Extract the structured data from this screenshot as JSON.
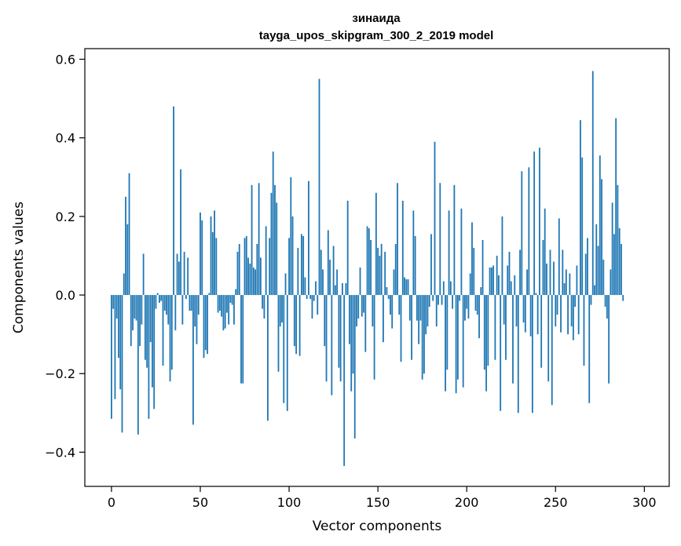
{
  "chart_data": {
    "type": "bar",
    "title": "зинаида",
    "subtitle": "tayga_upos_skipgram_300_2_2019 model",
    "xlabel": "Vector components",
    "ylabel": "Components values",
    "xlim": [
      -15,
      314
    ],
    "ylim": [
      -0.487,
      0.627
    ],
    "xticks": [
      0,
      50,
      100,
      150,
      200,
      250,
      300
    ],
    "yticks": [
      -0.4,
      -0.2,
      0.0,
      0.2,
      0.4,
      0.6
    ],
    "ytick_labels": [
      "−0.4",
      "−0.2",
      "0.0",
      "0.2",
      "0.4",
      "0.6"
    ],
    "grid": false,
    "bar_color": "#1f77b4",
    "values": [
      -0.315,
      -0.035,
      -0.265,
      -0.06,
      -0.16,
      -0.24,
      -0.35,
      0.055,
      0.25,
      0.18,
      0.31,
      -0.13,
      -0.09,
      -0.06,
      -0.065,
      -0.355,
      -0.13,
      -0.075,
      0.105,
      -0.165,
      -0.185,
      -0.315,
      -0.12,
      -0.235,
      -0.29,
      -0.035,
      0.005,
      -0.02,
      -0.015,
      -0.18,
      -0.04,
      -0.05,
      -0.075,
      -0.22,
      -0.19,
      0.48,
      -0.09,
      0.105,
      0.085,
      0.32,
      -0.075,
      0.11,
      -0.01,
      0.095,
      -0.04,
      -0.04,
      -0.33,
      -0.08,
      -0.125,
      -0.05,
      0.21,
      0.19,
      -0.16,
      -0.14,
      -0.15,
      0.005,
      0.2,
      0.16,
      0.215,
      0.145,
      -0.045,
      -0.04,
      -0.055,
      -0.09,
      -0.085,
      -0.045,
      -0.075,
      -0.02,
      -0.025,
      -0.075,
      0.015,
      0.11,
      0.13,
      -0.225,
      -0.225,
      0.145,
      0.15,
      0.095,
      0.08,
      0.28,
      0.07,
      0.065,
      0.13,
      0.285,
      0.095,
      -0.035,
      -0.06,
      0.175,
      -0.32,
      0.145,
      0.26,
      0.365,
      0.28,
      0.235,
      -0.195,
      -0.08,
      -0.07,
      -0.275,
      0.055,
      -0.295,
      0.145,
      0.3,
      0.2,
      -0.13,
      -0.15,
      0.12,
      -0.155,
      0.155,
      0.15,
      0.045,
      -0.01,
      0.29,
      -0.01,
      -0.06,
      -0.015,
      0.035,
      -0.05,
      0.55,
      0.115,
      0.065,
      -0.13,
      -0.22,
      0.165,
      0.09,
      -0.255,
      0.125,
      0.025,
      0.065,
      -0.185,
      -0.22,
      0.03,
      -0.435,
      0.03,
      0.24,
      -0.125,
      -0.245,
      -0.2,
      -0.365,
      -0.08,
      -0.06,
      0.07,
      -0.055,
      -0.045,
      -0.145,
      0.175,
      0.17,
      0.14,
      -0.08,
      -0.215,
      0.26,
      0.12,
      0.1,
      0.13,
      -0.12,
      0.11,
      0.02,
      -0.01,
      -0.05,
      -0.085,
      0.065,
      0.13,
      0.285,
      -0.05,
      -0.17,
      0.24,
      0.045,
      0.04,
      0.04,
      -0.065,
      -0.165,
      0.215,
      0.15,
      -0.065,
      -0.125,
      -0.065,
      -0.215,
      -0.2,
      -0.1,
      -0.08,
      -0.03,
      0.155,
      -0.015,
      0.39,
      -0.08,
      -0.025,
      0.285,
      -0.025,
      0.035,
      -0.245,
      -0.19,
      0.215,
      0.035,
      -0.035,
      0.28,
      -0.25,
      -0.215,
      -0.015,
      0.22,
      -0.235,
      -0.065,
      -0.035,
      -0.06,
      0.055,
      0.185,
      0.12,
      -0.04,
      -0.05,
      -0.11,
      0.02,
      0.14,
      -0.19,
      -0.245,
      -0.18,
      0.07,
      0.07,
      0.075,
      -0.165,
      0.1,
      0.05,
      -0.295,
      0.2,
      -0.075,
      -0.165,
      0.075,
      0.11,
      0.035,
      -0.225,
      0.05,
      -0.08,
      -0.3,
      0.115,
      0.315,
      -0.07,
      -0.095,
      0.065,
      0.325,
      -0.105,
      -0.3,
      0.365,
      0.005,
      -0.1,
      0.375,
      -0.185,
      0.14,
      0.22,
      0.08,
      -0.22,
      0.115,
      -0.28,
      0.085,
      -0.08,
      -0.05,
      0.195,
      -0.095,
      0.115,
      0.03,
      0.065,
      -0.1,
      0.055,
      -0.08,
      -0.115,
      -0.03,
      0.075,
      -0.1,
      0.445,
      0.35,
      -0.18,
      0.105,
      0.145,
      -0.275,
      -0.025,
      0.57,
      0.025,
      0.18,
      0.125,
      0.355,
      0.295,
      0.09,
      -0.03,
      -0.06,
      -0.225,
      0.065,
      0.235,
      0.155,
      0.45,
      0.28,
      0.17,
      0.13,
      -0.015
    ]
  }
}
